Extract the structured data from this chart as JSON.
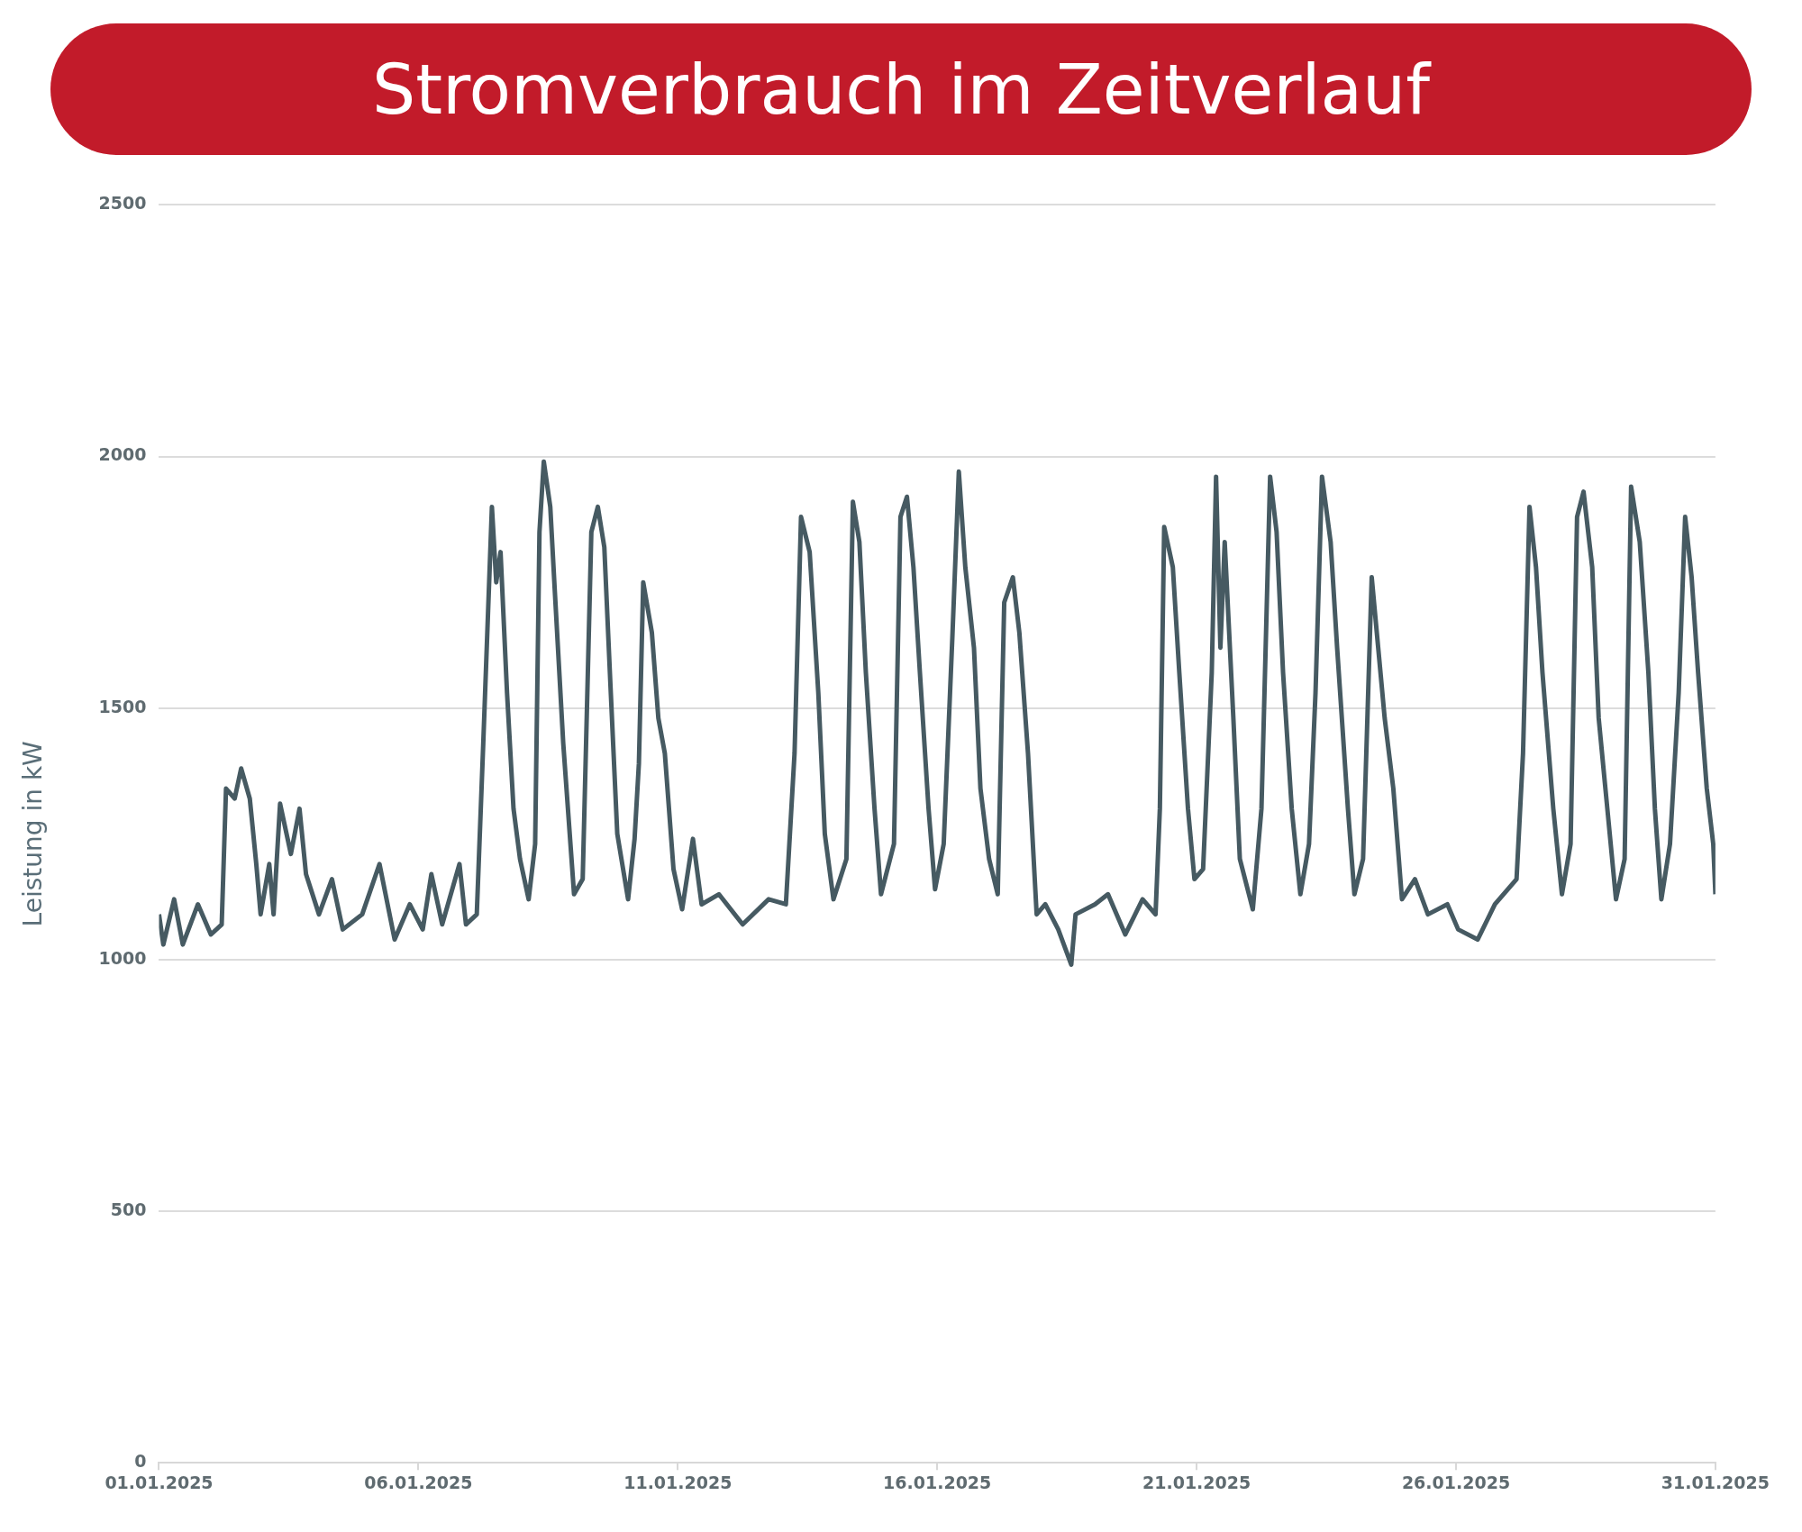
{
  "chart_data": {
    "type": "line",
    "title": "Stromverbrauch im Zeitverlauf",
    "ylabel": "Leistung in kW",
    "legend": false,
    "grid": "y",
    "marker": "none",
    "ylim": [
      0,
      2500
    ],
    "yticks": [
      0,
      500,
      1000,
      1500,
      2000,
      2500
    ],
    "xlim": [
      "2025-01-01",
      "2025-01-31"
    ],
    "xticks": [
      {
        "value": "2025-01-01",
        "label": "01.01.2025"
      },
      {
        "value": "2025-01-06",
        "label": "06.01.2025"
      },
      {
        "value": "2025-01-11",
        "label": "11.01.2025"
      },
      {
        "value": "2025-01-16",
        "label": "16.01.2025"
      },
      {
        "value": "2025-01-21",
        "label": "21.01.2025"
      },
      {
        "value": "2025-01-26",
        "label": "26.01.2025"
      },
      {
        "value": "2025-01-31",
        "label": "31.01.2025"
      }
    ],
    "x": [
      "2025-01-01T00:00",
      "2025-01-01T02:00",
      "2025-01-01T07:00",
      "2025-01-01T11:00",
      "2025-01-01T18:00",
      "2025-01-02T00:00",
      "2025-01-02T05:00",
      "2025-01-02T07:00",
      "2025-01-02T11:00",
      "2025-01-02T14:00",
      "2025-01-02T18:00",
      "2025-01-02T21:00",
      "2025-01-02T23:00",
      "2025-01-03T03:00",
      "2025-01-03T05:00",
      "2025-01-03T08:00",
      "2025-01-03T13:00",
      "2025-01-03T17:00",
      "2025-01-03T20:00",
      "2025-01-04T02:00",
      "2025-01-04T08:00",
      "2025-01-04T13:00",
      "2025-01-04T22:00",
      "2025-01-05T06:00",
      "2025-01-05T13:00",
      "2025-01-05T20:00",
      "2025-01-06T02:00",
      "2025-01-06T06:00",
      "2025-01-06T11:00",
      "2025-01-06T19:00",
      "2025-01-06T22:00",
      "2025-01-07T03:00",
      "2025-01-07T06:00",
      "2025-01-07T10:00",
      "2025-01-07T12:00",
      "2025-01-07T14:00",
      "2025-01-07T17:00",
      "2025-01-07T20:00",
      "2025-01-07T23:00",
      "2025-01-08T03:00",
      "2025-01-08T06:00",
      "2025-01-08T08:00",
      "2025-01-08T10:00",
      "2025-01-08T13:00",
      "2025-01-08T15:00",
      "2025-01-08T19:00",
      "2025-01-09T00:00",
      "2025-01-09T04:00",
      "2025-01-09T08:00",
      "2025-01-09T11:00",
      "2025-01-09T14:00",
      "2025-01-09T17:00",
      "2025-01-09T20:00",
      "2025-01-10T01:00",
      "2025-01-10T04:00",
      "2025-01-10T06:00",
      "2025-01-10T08:00",
      "2025-01-10T12:00",
      "2025-01-10T15:00",
      "2025-01-10T18:00",
      "2025-01-10T22:00",
      "2025-01-11T02:00",
      "2025-01-11T07:00",
      "2025-01-11T11:00",
      "2025-01-11T19:00",
      "2025-01-12T06:00",
      "2025-01-12T18:00",
      "2025-01-13T02:00",
      "2025-01-13T06:00",
      "2025-01-13T09:00",
      "2025-01-13T13:00",
      "2025-01-13T17:00",
      "2025-01-13T20:00",
      "2025-01-14T00:00",
      "2025-01-14T06:00",
      "2025-01-14T09:00",
      "2025-01-14T12:00",
      "2025-01-14T15:00",
      "2025-01-14T19:00",
      "2025-01-14T22:00",
      "2025-01-15T04:00",
      "2025-01-15T07:00",
      "2025-01-15T10:00",
      "2025-01-15T13:00",
      "2025-01-15T16:00",
      "2025-01-15T20:00",
      "2025-01-15T23:00",
      "2025-01-16T03:00",
      "2025-01-16T07:00",
      "2025-01-16T10:00",
      "2025-01-16T13:00",
      "2025-01-16T17:00",
      "2025-01-16T20:00",
      "2025-01-17T00:00",
      "2025-01-17T04:00",
      "2025-01-17T07:00",
      "2025-01-17T11:00",
      "2025-01-17T14:00",
      "2025-01-17T18:00",
      "2025-01-17T22:00",
      "2025-01-18T02:00",
      "2025-01-18T08:00",
      "2025-01-18T14:00",
      "2025-01-18T16:00",
      "2025-01-19T01:00",
      "2025-01-19T07:00",
      "2025-01-19T15:00",
      "2025-01-19T23:00",
      "2025-01-20T05:00",
      "2025-01-20T07:00",
      "2025-01-20T09:00",
      "2025-01-20T13:00",
      "2025-01-20T16:00",
      "2025-01-20T20:00",
      "2025-01-20T23:00",
      "2025-01-21T03:00",
      "2025-01-21T07:00",
      "2025-01-21T09:00",
      "2025-01-21T11:00",
      "2025-01-21T13:00",
      "2025-01-21T17:00",
      "2025-01-21T20:00",
      "2025-01-22T02:00",
      "2025-01-22T06:00",
      "2025-01-22T10:00",
      "2025-01-22T13:00",
      "2025-01-22T16:00",
      "2025-01-22T20:00",
      "2025-01-23T00:00",
      "2025-01-23T04:00",
      "2025-01-23T07:00",
      "2025-01-23T10:00",
      "2025-01-23T14:00",
      "2025-01-23T17:00",
      "2025-01-23T22:00",
      "2025-01-24T01:00",
      "2025-01-24T05:00",
      "2025-01-24T09:00",
      "2025-01-24T12:00",
      "2025-01-24T15:00",
      "2025-01-24T19:00",
      "2025-01-24T23:00",
      "2025-01-25T05:00",
      "2025-01-25T11:00",
      "2025-01-25T20:00",
      "2025-01-26T01:00",
      "2025-01-26T10:00",
      "2025-01-26T18:00",
      "2025-01-27T04:00",
      "2025-01-27T07:00",
      "2025-01-27T10:00",
      "2025-01-27T13:00",
      "2025-01-27T16:00",
      "2025-01-27T21:00",
      "2025-01-28T01:00",
      "2025-01-28T05:00",
      "2025-01-28T08:00",
      "2025-01-28T11:00",
      "2025-01-28T15:00",
      "2025-01-28T18:00",
      "2025-01-28T22:00",
      "2025-01-29T02:00",
      "2025-01-29T06:00",
      "2025-01-29T09:00",
      "2025-01-29T13:00",
      "2025-01-29T17:00",
      "2025-01-29T20:00",
      "2025-01-29T23:00",
      "2025-01-30T03:00",
      "2025-01-30T07:00",
      "2025-01-30T10:00",
      "2025-01-30T13:00",
      "2025-01-30T16:00",
      "2025-01-30T20:00",
      "2025-01-30T23:00",
      "2025-01-31T00:00"
    ],
    "series": [
      {
        "color": "#465a62",
        "values": [
          1090,
          1030,
          1120,
          1030,
          1110,
          1050,
          1070,
          1340,
          1320,
          1380,
          1320,
          1190,
          1090,
          1190,
          1090,
          1310,
          1210,
          1300,
          1170,
          1090,
          1160,
          1060,
          1090,
          1190,
          1040,
          1110,
          1060,
          1170,
          1070,
          1190,
          1070,
          1090,
          1430,
          1900,
          1750,
          1810,
          1530,
          1300,
          1200,
          1120,
          1230,
          1850,
          1990,
          1900,
          1740,
          1430,
          1130,
          1160,
          1850,
          1900,
          1820,
          1530,
          1250,
          1120,
          1240,
          1390,
          1750,
          1650,
          1480,
          1410,
          1180,
          1100,
          1240,
          1110,
          1130,
          1070,
          1120,
          1110,
          1410,
          1880,
          1810,
          1530,
          1250,
          1120,
          1200,
          1910,
          1830,
          1570,
          1300,
          1130,
          1230,
          1880,
          1920,
          1780,
          1570,
          1300,
          1140,
          1230,
          1640,
          1970,
          1780,
          1620,
          1340,
          1200,
          1130,
          1710,
          1760,
          1650,
          1410,
          1090,
          1110,
          1060,
          990,
          1090,
          1110,
          1130,
          1050,
          1120,
          1090,
          1300,
          1860,
          1780,
          1570,
          1300,
          1160,
          1180,
          1570,
          1960,
          1620,
          1830,
          1480,
          1200,
          1100,
          1300,
          1960,
          1850,
          1570,
          1300,
          1130,
          1230,
          1530,
          1960,
          1830,
          1620,
          1300,
          1130,
          1200,
          1760,
          1620,
          1480,
          1340,
          1120,
          1160,
          1090,
          1110,
          1060,
          1040,
          1110,
          1160,
          1410,
          1900,
          1780,
          1570,
          1300,
          1130,
          1230,
          1880,
          1930,
          1780,
          1480,
          1300,
          1120,
          1200,
          1940,
          1830,
          1570,
          1300,
          1120,
          1230,
          1530,
          1880,
          1760,
          1570,
          1340,
          1230,
          1130
        ]
      }
    ]
  }
}
